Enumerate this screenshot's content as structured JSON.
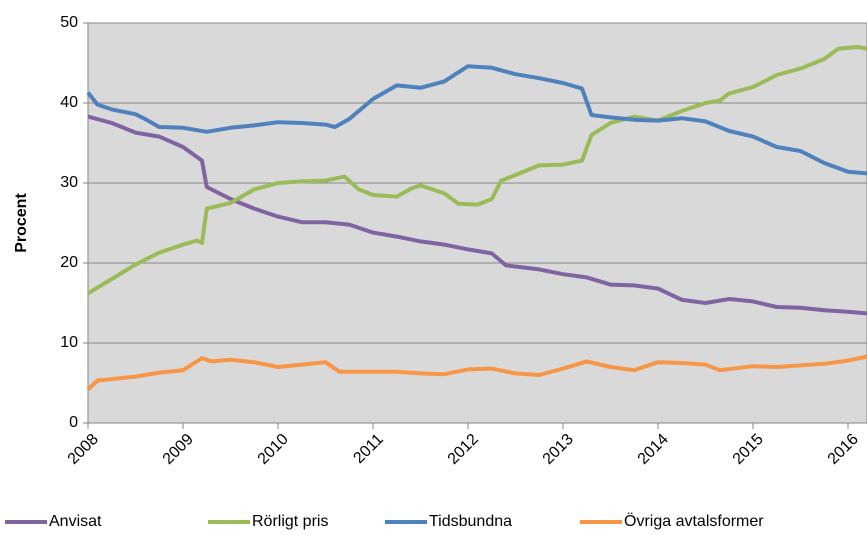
{
  "chart_data": {
    "type": "line",
    "ylabel": "Procent",
    "xlim": [
      2008,
      2016.2
    ],
    "xticks": [
      2008,
      2009,
      2010,
      2011,
      2012,
      2013,
      2014,
      2015,
      2016
    ],
    "ylim": [
      0,
      50
    ],
    "yticks": [
      0,
      10,
      20,
      30,
      40,
      50
    ],
    "grid": true,
    "legend": "bottom",
    "series": [
      {
        "name": "Anvisat",
        "color": "#8064a2",
        "x": [
          2008,
          2008.25,
          2008.5,
          2008.75,
          2009,
          2009.2,
          2009.25,
          2009.5,
          2009.75,
          2010,
          2010.25,
          2010.5,
          2010.75,
          2011,
          2011.25,
          2011.5,
          2011.75,
          2012,
          2012.25,
          2012.4,
          2012.75,
          2013,
          2013.25,
          2013.5,
          2013.75,
          2014,
          2014.25,
          2014.5,
          2014.75,
          2015,
          2015.25,
          2015.5,
          2015.75,
          2016,
          2016.2
        ],
        "values": [
          38.3,
          37.5,
          36.3,
          35.8,
          34.5,
          32.8,
          29.5,
          28,
          26.8,
          25.8,
          25.1,
          25.1,
          24.8,
          23.8,
          23.3,
          22.7,
          22.3,
          21.7,
          21.2,
          19.7,
          19.2,
          18.6,
          18.2,
          17.3,
          17.2,
          16.8,
          15.4,
          15,
          15.5,
          15.2,
          14.5,
          14.4,
          14.1,
          13.9,
          13.7
        ]
      },
      {
        "name": "Rörligt pris",
        "color": "#9bbb59",
        "x": [
          2008,
          2008.25,
          2008.5,
          2008.75,
          2009,
          2009.15,
          2009.2,
          2009.25,
          2009.5,
          2009.75,
          2010,
          2010.25,
          2010.5,
          2010.7,
          2010.85,
          2011,
          2011.25,
          2011.4,
          2011.5,
          2011.75,
          2011.9,
          2012.1,
          2012.25,
          2012.35,
          2012.5,
          2012.75,
          2013,
          2013.2,
          2013.3,
          2013.5,
          2013.75,
          2014,
          2014.25,
          2014.5,
          2014.65,
          2014.75,
          2015,
          2015.25,
          2015.5,
          2015.75,
          2015.9,
          2016.1,
          2016.2
        ],
        "values": [
          16.2,
          18,
          19.8,
          21.3,
          22.3,
          22.8,
          22.5,
          26.8,
          27.5,
          29.2,
          30,
          30.2,
          30.3,
          30.8,
          29.2,
          28.5,
          28.3,
          29.3,
          29.7,
          28.7,
          27.4,
          27.3,
          28,
          30.3,
          31,
          32.2,
          32.3,
          32.8,
          36,
          37.5,
          38.3,
          37.8,
          39,
          40,
          40.3,
          41.2,
          42,
          43.5,
          44.3,
          45.5,
          46.8,
          47,
          46.8
        ]
      },
      {
        "name": "Tidsbundna",
        "color": "#4f81bd",
        "x": [
          2008,
          2008.1,
          2008.25,
          2008.5,
          2008.6,
          2008.75,
          2009,
          2009.25,
          2009.5,
          2009.75,
          2010,
          2010.25,
          2010.5,
          2010.6,
          2010.75,
          2011,
          2011.25,
          2011.5,
          2011.75,
          2012,
          2012.25,
          2012.5,
          2012.75,
          2013,
          2013.2,
          2013.3,
          2013.5,
          2013.75,
          2014,
          2014.25,
          2014.5,
          2014.75,
          2015,
          2015.25,
          2015.5,
          2015.75,
          2016,
          2016.2
        ],
        "values": [
          41.3,
          39.8,
          39.2,
          38.6,
          38,
          37,
          36.9,
          36.4,
          36.9,
          37.2,
          37.6,
          37.5,
          37.3,
          37,
          38,
          40.5,
          42.2,
          41.9,
          42.7,
          44.6,
          44.4,
          43.6,
          43.1,
          42.5,
          41.8,
          38.5,
          38.2,
          37.9,
          37.8,
          38.1,
          37.7,
          36.5,
          35.8,
          34.5,
          34,
          32.5,
          31.4,
          31.2
        ]
      },
      {
        "name": "Övriga avtalsformer",
        "color": "#f79646",
        "x": [
          2008,
          2008.1,
          2008.5,
          2008.75,
          2009,
          2009.2,
          2009.3,
          2009.5,
          2009.75,
          2010,
          2010.25,
          2010.5,
          2010.65,
          2011,
          2011.25,
          2011.5,
          2011.75,
          2012,
          2012.25,
          2012.5,
          2012.75,
          2013,
          2013.25,
          2013.5,
          2013.75,
          2014,
          2014.25,
          2014.5,
          2014.65,
          2015,
          2015.25,
          2015.5,
          2015.75,
          2016,
          2016.2
        ],
        "values": [
          4.2,
          5.3,
          5.8,
          6.3,
          6.6,
          8.1,
          7.7,
          7.9,
          7.6,
          7,
          7.3,
          7.6,
          6.4,
          6.4,
          6.4,
          6.2,
          6.1,
          6.7,
          6.8,
          6.2,
          6,
          6.8,
          7.7,
          7,
          6.6,
          7.6,
          7.5,
          7.3,
          6.6,
          7.1,
          7,
          7.2,
          7.4,
          7.8,
          8.3
        ]
      }
    ]
  }
}
